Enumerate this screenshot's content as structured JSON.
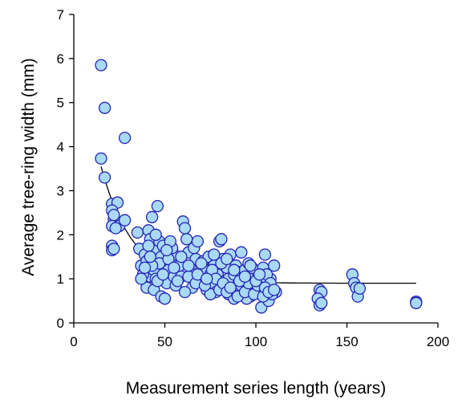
{
  "chart_data": {
    "type": "scatter",
    "title": "",
    "xlabel": "Measurement series length (years)",
    "ylabel": "Average tree-ring width (mm)",
    "xlim": [
      0,
      200
    ],
    "ylim": [
      0,
      7
    ],
    "x_ticks": [
      0,
      50,
      100,
      150,
      200
    ],
    "y_ticks": [
      0,
      1,
      2,
      3,
      4,
      5,
      6,
      7
    ],
    "grid": false,
    "legend": "none",
    "marker_fill": "#a9d9f5",
    "marker_edge": "#2323b4",
    "points": [
      [
        15,
        5.85
      ],
      [
        17,
        4.88
      ],
      [
        15,
        3.73
      ],
      [
        28,
        4.2
      ],
      [
        17,
        3.3
      ],
      [
        21,
        2.7
      ],
      [
        24,
        2.73
      ],
      [
        21,
        2.55
      ],
      [
        22,
        2.35
      ],
      [
        21,
        2.2
      ],
      [
        22,
        2.45
      ],
      [
        25,
        2.2
      ],
      [
        28,
        2.33
      ],
      [
        23,
        2.15
      ],
      [
        21,
        1.75
      ],
      [
        21,
        1.65
      ],
      [
        22,
        1.68
      ],
      [
        35,
        2.05
      ],
      [
        36,
        1.68
      ],
      [
        37,
        1.3
      ],
      [
        39,
        1.55
      ],
      [
        40,
        1.4
      ],
      [
        41,
        2.1
      ],
      [
        42,
        1.05
      ],
      [
        42,
        1.9
      ],
      [
        43,
        2.4
      ],
      [
        44,
        1.2
      ],
      [
        45,
        1.65
      ],
      [
        46,
        2.65
      ],
      [
        47,
        1.85
      ],
      [
        48,
        1.5
      ],
      [
        49,
        1.75
      ],
      [
        50,
        1.3
      ],
      [
        52,
        1.2
      ],
      [
        51,
        0.9
      ],
      [
        53,
        1.6
      ],
      [
        55,
        1.05
      ],
      [
        56,
        0.85
      ],
      [
        57,
        1.45
      ],
      [
        60,
        2.3
      ],
      [
        61,
        2.15
      ],
      [
        62,
        1.9
      ],
      [
        63,
        1.6
      ],
      [
        59,
        1.05
      ],
      [
        64,
        1.25
      ],
      [
        65,
        0.8
      ],
      [
        66,
        1.7
      ],
      [
        67,
        1.45
      ],
      [
        68,
        1.85
      ],
      [
        69,
        1.0
      ],
      [
        70,
        0.95
      ],
      [
        71,
        1.4
      ],
      [
        72,
        1.2
      ],
      [
        73,
        0.75
      ],
      [
        74,
        1.5
      ],
      [
        75,
        1.1
      ],
      [
        76,
        0.85
      ],
      [
        77,
        1.3
      ],
      [
        78,
        0.7
      ],
      [
        79,
        1.1
      ],
      [
        80,
        1.85
      ],
      [
        81,
        1.9
      ],
      [
        82,
        1.45
      ],
      [
        83,
        0.95
      ],
      [
        84,
        1.25
      ],
      [
        85,
        0.65
      ],
      [
        86,
        1.55
      ],
      [
        87,
        1.05
      ],
      [
        88,
        0.55
      ],
      [
        89,
        1.3
      ],
      [
        90,
        0.85
      ],
      [
        91,
        1.15
      ],
      [
        92,
        1.6
      ],
      [
        93,
        0.75
      ],
      [
        94,
        1.2
      ],
      [
        95,
        0.95
      ],
      [
        96,
        1.35
      ],
      [
        97,
        0.6
      ],
      [
        98,
        0.8
      ],
      [
        99,
        1.05
      ],
      [
        100,
        0.7
      ],
      [
        101,
        1.15
      ],
      [
        102,
        0.9
      ],
      [
        103,
        0.35
      ],
      [
        104,
        1.25
      ],
      [
        105,
        1.55
      ],
      [
        106,
        0.85
      ],
      [
        107,
        0.5
      ],
      [
        108,
        1.0
      ],
      [
        109,
        0.75
      ],
      [
        110,
        1.3
      ],
      [
        111,
        0.7
      ],
      [
        103,
        1.0
      ],
      [
        95,
        0.55
      ],
      [
        85,
        1.0
      ],
      [
        75,
        0.65
      ],
      [
        65,
        1.1
      ],
      [
        55,
        1.55
      ],
      [
        45,
        1.0
      ],
      [
        38,
        1.1
      ],
      [
        40,
        0.8
      ],
      [
        44,
        0.75
      ],
      [
        48,
        0.6
      ],
      [
        50,
        0.55
      ],
      [
        47,
        1.35
      ],
      [
        46,
        0.95
      ],
      [
        41,
        1.75
      ],
      [
        43,
        1.3
      ],
      [
        39,
        1.25
      ],
      [
        52,
        1.45
      ],
      [
        54,
        1.7
      ],
      [
        58,
        1.3
      ],
      [
        61,
        0.7
      ],
      [
        63,
        1.05
      ],
      [
        67,
        0.9
      ],
      [
        70,
        1.35
      ],
      [
        72,
        0.85
      ],
      [
        76,
        1.2
      ],
      [
        78,
        1.0
      ],
      [
        80,
        0.75
      ],
      [
        82,
        0.9
      ],
      [
        84,
        0.7
      ],
      [
        86,
        0.8
      ],
      [
        88,
        1.1
      ],
      [
        90,
        0.6
      ],
      [
        92,
        0.85
      ],
      [
        94,
        0.7
      ],
      [
        96,
        0.9
      ],
      [
        98,
        1.25
      ],
      [
        99,
        0.65
      ],
      [
        101,
        0.85
      ],
      [
        104,
        0.6
      ],
      [
        106,
        1.1
      ],
      [
        108,
        0.9
      ],
      [
        109,
        0.65
      ],
      [
        57,
        0.95
      ],
      [
        53,
        1.85
      ],
      [
        49,
        1.1
      ],
      [
        42,
        1.5
      ],
      [
        37,
        1.0
      ],
      [
        45,
        2.0
      ],
      [
        51,
        1.65
      ],
      [
        55,
        1.25
      ],
      [
        59,
        1.5
      ],
      [
        63,
        1.3
      ],
      [
        68,
        1.1
      ],
      [
        73,
        1.0
      ],
      [
        77,
        1.55
      ],
      [
        81,
        1.35
      ],
      [
        84,
        1.45
      ],
      [
        88,
        1.2
      ],
      [
        91,
        0.95
      ],
      [
        94,
        1.05
      ],
      [
        97,
        1.3
      ],
      [
        100,
        0.95
      ],
      [
        102,
        1.1
      ],
      [
        105,
        0.8
      ],
      [
        107,
        0.7
      ],
      [
        110,
        0.75
      ],
      [
        135,
        0.75
      ],
      [
        136,
        0.7
      ],
      [
        134,
        0.55
      ],
      [
        135,
        0.4
      ],
      [
        136,
        0.45
      ],
      [
        153,
        1.1
      ],
      [
        154,
        0.9
      ],
      [
        155,
        0.8
      ],
      [
        156,
        0.6
      ],
      [
        157,
        0.78
      ],
      [
        188,
        0.48
      ],
      [
        188,
        0.45
      ]
    ],
    "trend_line": {
      "type": "exponential-decay",
      "x_range": [
        15,
        188
      ]
    }
  }
}
